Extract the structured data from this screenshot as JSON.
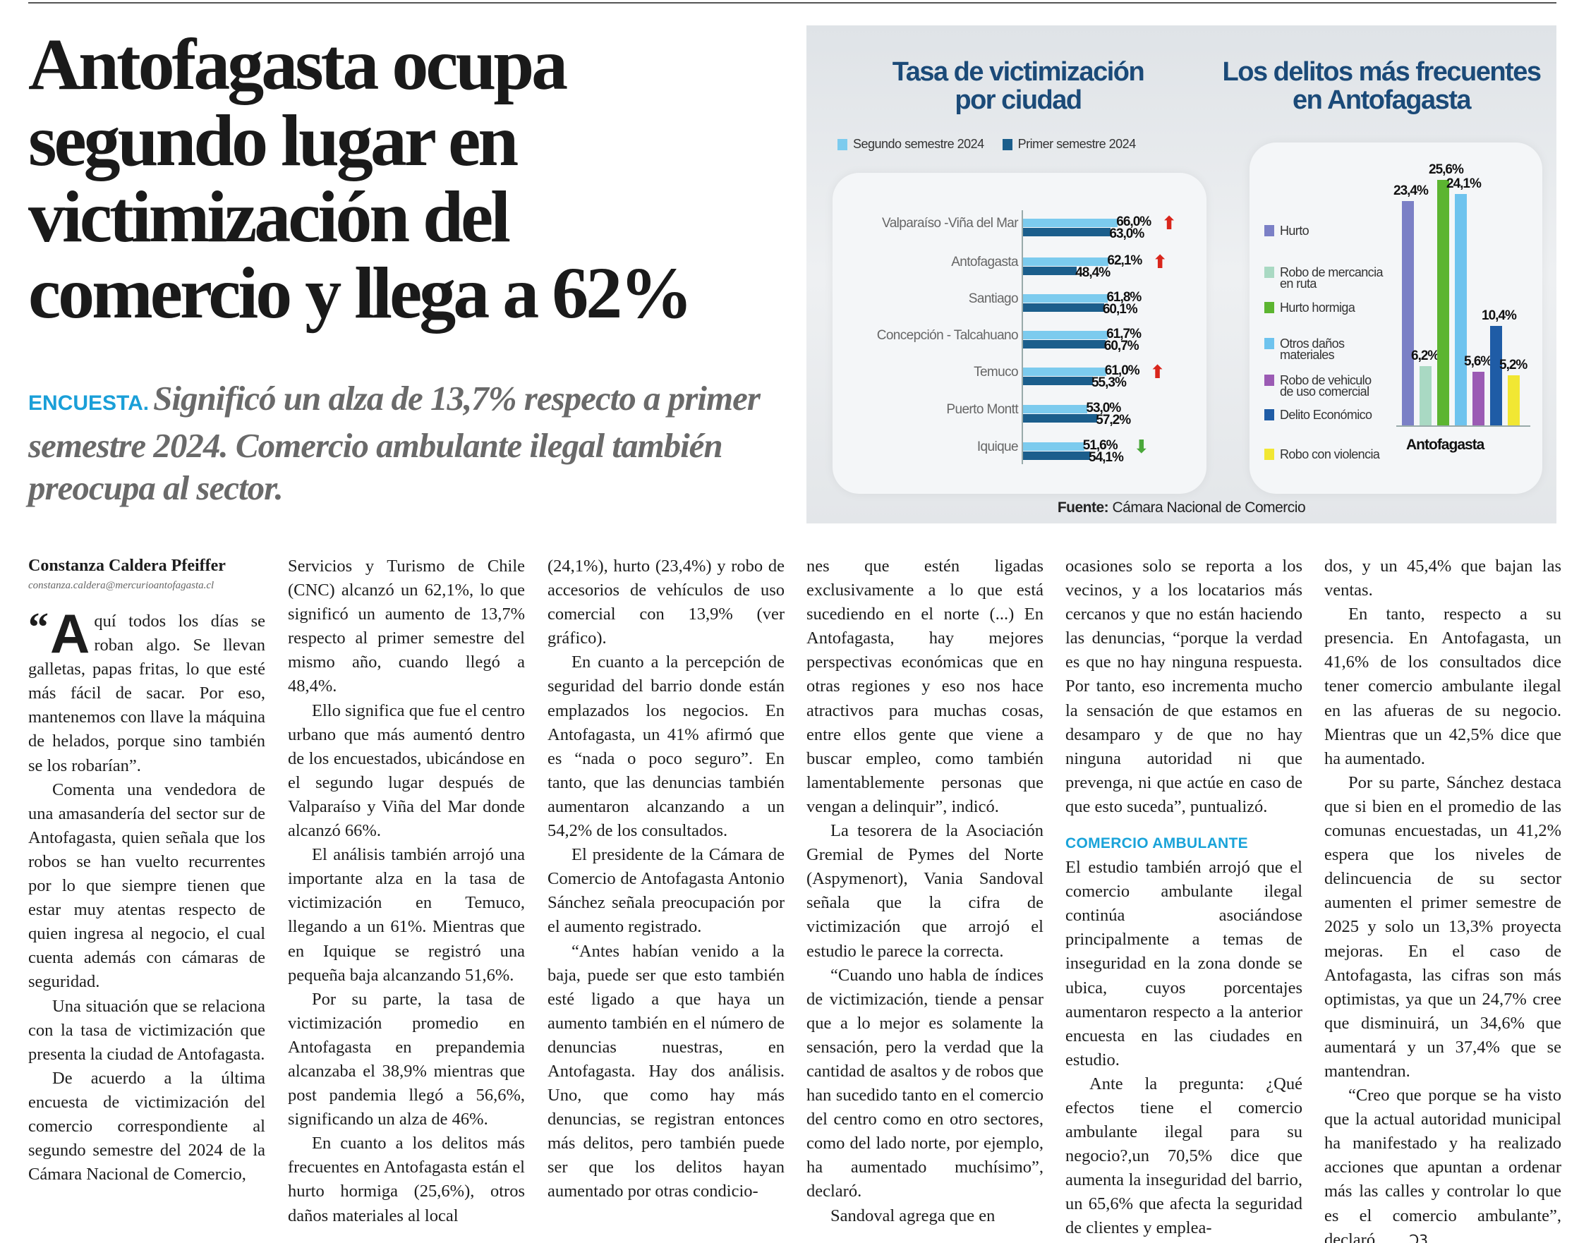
{
  "article": {
    "headline": "Antofagasta ocupa segundo lugar en victimización del comercio y llega a 62%",
    "kicker": "ENCUESTA.",
    "deck": "Significó un alza de 13,7% respecto a primer semestre 2024. Comercio ambulante ilegal también preocupa al sector.",
    "byline": "Constanza Caldera Pfeiffer",
    "email": "constanza.caldera@mercurioantofagasta.cl",
    "drop_quote": "“",
    "drop_cap": "A",
    "columns": [
      {
        "paragraphs": [
          "quí todos los días se roban algo. Se llevan galletas, papas fritas, lo que esté más fácil de sacar. Por eso, mantenemos con llave la máquina de helados, porque sino también se los robarían”.",
          "Comenta una vendedora de una amasandería del sector sur de Antofagasta, quien señala que los robos se han vuelto recurrentes por lo que siempre tienen que estar muy atentas respecto de quien ingresa al negocio, el cual cuenta además con cámaras de seguridad.",
          "Una situación que se relaciona con la tasa de victimización que presenta la ciudad de Antofagasta.",
          "De acuerdo a la última encuesta de victimización del comercio correspondiente al segundo semestre del 2024 de la Cámara Nacional de Comercio,"
        ]
      },
      {
        "paragraphs": [
          "Servicios y Turismo de Chile (CNC) alcanzó un 62,1%, lo que significó un aumento de 13,7% respecto al primer semestre del mismo año, cuando llegó a 48,4%.",
          "Ello significa que fue el centro urbano que más aumentó dentro de los encuestados, ubicándose en el segundo lugar después de Valparaíso y Viña del Mar donde alcanzó 66%.",
          "El análisis también arrojó una importante alza en la tasa de victimización en Temuco, llegando a un 61%. Mientras que en Iquique se registró una pequeña baja alcanzando 51,6%.",
          "Por su parte, la tasa de victimización promedio en Antofagasta en prepandemia alcanzaba el 38,9% mientras que post pandemia llegó a 56,6%, significando un alza de 46%.",
          "En cuanto a los delitos más frecuentes en Antofagasta están el hurto hormiga (25,6%), otros daños materiales al local"
        ]
      },
      {
        "paragraphs": [
          "(24,1%), hurto (23,4%) y robo de accesorios de vehículos de uso comercial con 13,9% (ver gráfico).",
          "En cuanto a la percepción de seguridad del barrio donde están emplazados los negocios. En Antofagasta, un 41% afirmó que es “nada o poco seguro”. En tanto, que las denuncias también aumentaron alcanzando a un 54,2% de los consultados.",
          "El presidente de la Cámara de Comercio de Antofagasta Antonio Sánchez señala preocupación por el aumento registrado.",
          "“Antes habían venido a la baja, puede ser que esto también esté ligado a que haya un aumento también en el número de denuncias nuestras, en Antofagasta. Hay dos análisis. Uno, que como hay más denuncias, se registran entonces más delitos, pero también puede ser que los delitos hayan aumentado por otras condicio-"
        ]
      },
      {
        "paragraphs": [
          "nes que estén ligadas exclusivamente a lo que está sucediendo en el norte (...) En Antofagasta, hay mejores perspectivas económicas que en otras regiones y eso nos hace atractivos para muchas cosas, entre ellos gente que viene a buscar empleo, como también lamentablemente personas que vengan a delinquir”, indicó.",
          "La tesorera de la Asociación Gremial de Pymes del Norte (Aspymenort), Vania Sandoval señala que la cifra de victimización que arrojó el estudio le parece la correcta.",
          "“Cuando uno habla de índices de victimización, tiende a pensar que a lo mejor es solamente la sensación, pero la verdad que la cantidad de asaltos y de robos que han sucedido tanto en el comercio del centro como en otro sectores, como del lado norte, por ejemplo, ha aumentado muchísimo”, declaró.",
          "Sandoval agrega que en"
        ]
      },
      {
        "paragraphs_before": [
          "ocasiones solo se reporta a los vecinos, y a los locatarios más cercanos y que no están haciendo las denuncias, “porque la verdad es que no hay ninguna respuesta. Por tanto, eso incrementa mucho la sensación de que estamos en desamparo y de que no hay ninguna autoridad ni que prevenga, ni que actúe en caso de que esto suceda”, puntualizó."
        ],
        "subhead": "COMERCIO AMBULANTE",
        "paragraphs_after": [
          "El estudio también arrojó que el comercio ambulante ilegal continúa asociándose principalmente a temas de inseguridad en la zona donde se ubica, cuyos porcentajes aumentaron respecto a la anterior encuesta en las ciudades en estudio.",
          "Ante la pregunta: ¿Qué efectos tiene el comercio ambulante ilegal para su negocio?,un 70,5% dice que aumenta la inseguridad del barrio, un 65,6% que afecta la seguridad de clientes y emplea-"
        ]
      },
      {
        "paragraphs": [
          "dos, y un 45,4% que bajan las ventas.",
          "En tanto, respecto a su presencia. En Antofagasta, un 41,6% de los consultados dice tener comercio ambulante ilegal en las afueras de su negocio. Mientras que un 42,5% dice que ha aumentado.",
          "Por su parte, Sánchez destaca que si bien en el promedio de las comunas encuestadas, un 41,2% espera que los niveles de delincuencia de su sector aumenten el primer semestre de 2025 y solo un 13,3% proyecta mejoras. En el caso de Antofagasta, las cifras son más optimistas, ya que un 24,7% cree que disminuirá, un 34,6% que aumentará y un 37,4% que se mantendran.",
          "“Creo que porque se ha visto que la actual autoridad municipal ha manifestado y ha realizado acciones que apuntan a ordenar más las calles y controlar lo que es el comercio ambulante”, declaró."
        ]
      }
    ]
  },
  "infographic": {
    "source_label": "Fuente:",
    "source_text": "Cámara Nacional de Comercio"
  },
  "chart_data": [
    {
      "type": "bar",
      "orientation": "horizontal",
      "title": "Tasa de victimización por ciudad",
      "categories": [
        "Valparaíso -Viña del Mar",
        "Antofagasta",
        "Santiago",
        "Concepción - Talcahuano",
        "Temuco",
        "Puerto Montt",
        "Iquique"
      ],
      "series": [
        {
          "name": "Segundo semestre 2024",
          "color": "#7ccbee",
          "values": [
            66.0,
            62.1,
            61.8,
            61.7,
            61.0,
            53.0,
            51.6
          ],
          "labels": [
            "66,0%",
            "62,1%",
            "61,8%",
            "61,7%",
            "61,0%",
            "53,0%",
            "51,6%"
          ]
        },
        {
          "name": "Primer semestre 2024",
          "color": "#1b5e8c",
          "values": [
            63.0,
            48.4,
            60.1,
            60.7,
            55.3,
            57.2,
            54.1
          ],
          "labels": [
            "63,0%",
            "48,4%",
            "60,1%",
            "60,7%",
            "55,3%",
            "57,2%",
            "54,1%"
          ]
        }
      ],
      "trend": [
        "up",
        "up",
        null,
        null,
        "up",
        null,
        "down"
      ],
      "trend_colors": {
        "up": "#d9261c",
        "down": "#4aa83a"
      },
      "legend": "top",
      "grid": false
    },
    {
      "type": "bar",
      "title": "Los delitos más frecuentes en Antofagasta",
      "categories": [
        "Antofagasta"
      ],
      "series": [
        {
          "name": "Hurto",
          "color": "#7b80c6",
          "values": [
            23.4
          ],
          "label": "23,4%"
        },
        {
          "name": "Robo de mercancia en ruta",
          "color": "#a9d9c3",
          "values": [
            6.2
          ],
          "label": "6,2%"
        },
        {
          "name": "Hurto hormiga",
          "color": "#5cb531",
          "values": [
            25.6
          ],
          "label": "25,6%"
        },
        {
          "name": "Otros daños materiales",
          "color": "#6ec3ee",
          "values": [
            24.1
          ],
          "label": "24,1%"
        },
        {
          "name": "Robo de vehiculo de uso comercial",
          "color": "#9b5bb4",
          "values": [
            5.6
          ],
          "label": "5,6%"
        },
        {
          "name": "Delito Económico",
          "color": "#1f5ca6",
          "values": [
            10.4
          ],
          "label": "10,4%"
        },
        {
          "name": "Robo con violencia",
          "color": "#f1e733",
          "values": [
            5.2
          ],
          "label": "5,2%"
        }
      ],
      "legend": "left",
      "grid": false
    }
  ]
}
